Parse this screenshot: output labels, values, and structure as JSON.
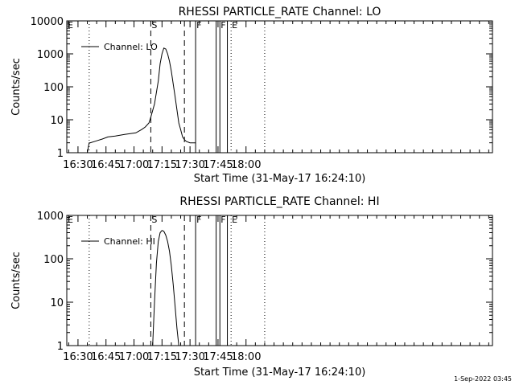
{
  "timestamp": "1-Sep-2022 03:45",
  "chart_data": [
    {
      "type": "line",
      "title": "RHESSI PARTICLE_RATE Channel: LO",
      "xlabel": "Start Time (31-May-17 16:24:10)",
      "ylabel": "Counts/sec",
      "y_scale": "log",
      "ylim": [
        1,
        10000
      ],
      "xlim": [
        984,
        1212
      ],
      "x_tick_values": [
        990,
        1005,
        1020,
        1035,
        1050,
        1065,
        1080
      ],
      "x_tick_labels": [
        "16:30",
        "16:45",
        "17:00",
        "17:15",
        "17:30",
        "17:45",
        "18:00"
      ],
      "y_tick_values": [
        1,
        10,
        100,
        1000,
        10000
      ],
      "y_tick_labels": [
        "1",
        "10",
        "100",
        "1000",
        "10000"
      ],
      "legend": {
        "placement": "top-left",
        "label": "Channel: LO"
      },
      "markers": [
        {
          "label": "E",
          "x": 984,
          "style": "dotted"
        },
        {
          "label": "",
          "x": 996,
          "style": "dotted"
        },
        {
          "label": "S",
          "x": 1029,
          "style": "dashed"
        },
        {
          "label": "",
          "x": 1047,
          "style": "dashed"
        },
        {
          "label": "F",
          "x": 1053,
          "style": "solid"
        },
        {
          "label": "",
          "x": 1064,
          "style": "solid"
        },
        {
          "label": "F",
          "x": 1066,
          "style": "solid"
        },
        {
          "label": "",
          "x": 1070,
          "style": "solid"
        },
        {
          "label": "E",
          "x": 1072,
          "style": "dotted"
        },
        {
          "label": "",
          "x": 1090,
          "style": "dotted"
        }
      ],
      "series": [
        {
          "name": "Channel: LO",
          "x": [
            995,
            996,
            996.5,
            1000,
            1003,
            1006,
            1010,
            1015,
            1018,
            1021,
            1024,
            1026,
            1028,
            1029,
            1031,
            1033,
            1034,
            1035,
            1036,
            1037,
            1038,
            1039,
            1040,
            1041,
            1042,
            1043,
            1044,
            1045,
            1046,
            1047,
            1048,
            1050,
            1053
          ],
          "y": [
            1,
            2,
            2,
            2.3,
            2.6,
            3,
            3.2,
            3.6,
            3.8,
            4,
            5,
            6,
            8,
            12,
            30,
            150,
            500,
            1000,
            1500,
            1400,
            1000,
            600,
            300,
            120,
            50,
            20,
            8,
            5,
            3,
            2.5,
            2.2,
            2,
            2
          ]
        }
      ]
    },
    {
      "type": "line",
      "title": "RHESSI PARTICLE_RATE Channel: HI",
      "xlabel": "Start Time (31-May-17 16:24:10)",
      "ylabel": "Counts/sec",
      "y_scale": "log",
      "ylim": [
        1,
        1000
      ],
      "xlim": [
        984,
        1212
      ],
      "x_tick_values": [
        990,
        1005,
        1020,
        1035,
        1050,
        1065,
        1080
      ],
      "x_tick_labels": [
        "16:30",
        "16:45",
        "17:00",
        "17:15",
        "17:30",
        "17:45",
        "18:00"
      ],
      "y_tick_values": [
        1,
        10,
        100,
        1000
      ],
      "y_tick_labels": [
        "1",
        "10",
        "100",
        "1000"
      ],
      "legend": {
        "placement": "top-left",
        "label": "Channel: HI"
      },
      "markers": [
        {
          "label": "E",
          "x": 984,
          "style": "dotted"
        },
        {
          "label": "",
          "x": 996,
          "style": "dotted"
        },
        {
          "label": "S",
          "x": 1029,
          "style": "dashed"
        },
        {
          "label": "",
          "x": 1047,
          "style": "dashed"
        },
        {
          "label": "F",
          "x": 1053,
          "style": "solid"
        },
        {
          "label": "",
          "x": 1064,
          "style": "solid"
        },
        {
          "label": "F",
          "x": 1066,
          "style": "solid"
        },
        {
          "label": "",
          "x": 1070,
          "style": "solid"
        },
        {
          "label": "E",
          "x": 1072,
          "style": "dotted"
        },
        {
          "label": "",
          "x": 1090,
          "style": "dotted"
        }
      ],
      "series": [
        {
          "name": "Channel: HI",
          "x": [
            1030,
            1031,
            1032,
            1033,
            1034,
            1035,
            1036,
            1037,
            1038,
            1039,
            1040,
            1041,
            1042,
            1043,
            1044
          ],
          "y": [
            1,
            10,
            80,
            250,
            400,
            450,
            430,
            350,
            250,
            150,
            70,
            25,
            8,
            2.5,
            1
          ]
        }
      ]
    }
  ]
}
